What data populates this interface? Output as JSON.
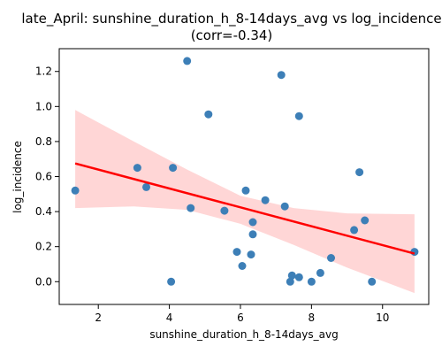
{
  "chart_data": {
    "type": "scatter",
    "title": "late_April: sunshine_duration_h_8-14days_avg vs log_incidence",
    "subtitle": "(corr=-0.34)",
    "xlabel": "sunshine_duration_h_8-14days_avg",
    "ylabel": "log_incidence",
    "xlim": [
      0.9,
      11.3
    ],
    "ylim": [
      -0.13,
      1.33
    ],
    "xticks": [
      2,
      4,
      6,
      8,
      10
    ],
    "yticks": [
      0.0,
      0.2,
      0.4,
      0.6,
      0.8,
      1.0,
      1.2
    ],
    "grid": false,
    "colors": {
      "points": "#3d7fb7",
      "fit_line": "#ff0000",
      "band": "#ffc8c8"
    },
    "points": [
      {
        "x": 1.35,
        "y": 0.52
      },
      {
        "x": 3.1,
        "y": 0.65
      },
      {
        "x": 3.35,
        "y": 0.54
      },
      {
        "x": 4.05,
        "y": 0.0
      },
      {
        "x": 4.1,
        "y": 0.65
      },
      {
        "x": 4.5,
        "y": 1.26
      },
      {
        "x": 4.6,
        "y": 0.42
      },
      {
        "x": 5.1,
        "y": 0.955
      },
      {
        "x": 5.55,
        "y": 0.405
      },
      {
        "x": 5.9,
        "y": 0.17
      },
      {
        "x": 6.05,
        "y": 0.09
      },
      {
        "x": 6.15,
        "y": 0.52
      },
      {
        "x": 6.3,
        "y": 0.155
      },
      {
        "x": 6.35,
        "y": 0.34
      },
      {
        "x": 6.35,
        "y": 0.27
      },
      {
        "x": 6.7,
        "y": 0.465
      },
      {
        "x": 7.15,
        "y": 1.18
      },
      {
        "x": 7.25,
        "y": 0.43
      },
      {
        "x": 7.4,
        "y": 0.0
      },
      {
        "x": 7.45,
        "y": 0.035
      },
      {
        "x": 7.65,
        "y": 0.945
      },
      {
        "x": 7.65,
        "y": 0.025
      },
      {
        "x": 8.0,
        "y": 0.0
      },
      {
        "x": 8.25,
        "y": 0.05
      },
      {
        "x": 8.55,
        "y": 0.135
      },
      {
        "x": 9.2,
        "y": 0.295
      },
      {
        "x": 9.35,
        "y": 0.625
      },
      {
        "x": 9.5,
        "y": 0.35
      },
      {
        "x": 9.7,
        "y": 0.0
      },
      {
        "x": 10.9,
        "y": 0.17
      }
    ],
    "fit_line": [
      {
        "x": 1.35,
        "y": 0.675
      },
      {
        "x": 10.9,
        "y": 0.16
      }
    ],
    "confidence_band": {
      "upper": [
        {
          "x": 1.35,
          "y": 0.98
        },
        {
          "x": 3.0,
          "y": 0.8
        },
        {
          "x": 4.5,
          "y": 0.64
        },
        {
          "x": 6.0,
          "y": 0.49
        },
        {
          "x": 7.5,
          "y": 0.42
        },
        {
          "x": 9.0,
          "y": 0.39
        },
        {
          "x": 10.9,
          "y": 0.385
        }
      ],
      "lower": [
        {
          "x": 1.35,
          "y": 0.42
        },
        {
          "x": 3.0,
          "y": 0.43
        },
        {
          "x": 4.5,
          "y": 0.41
        },
        {
          "x": 6.0,
          "y": 0.33
        },
        {
          "x": 7.5,
          "y": 0.21
        },
        {
          "x": 9.0,
          "y": 0.08
        },
        {
          "x": 10.9,
          "y": -0.065
        }
      ]
    }
  }
}
